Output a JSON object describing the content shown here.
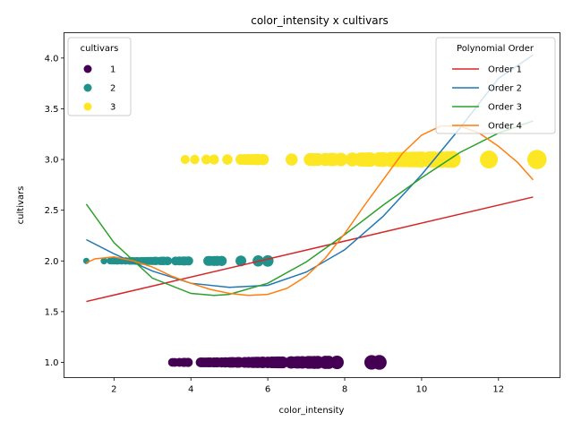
{
  "chart_data": {
    "type": "scatter",
    "title": "color_intensity x cultivars",
    "xlabel": "color_intensity",
    "ylabel": "cultivars",
    "xlim": [
      0.7,
      13.6
    ],
    "ylim": [
      0.85,
      4.25
    ],
    "xticks": [
      2,
      4,
      6,
      8,
      10,
      12
    ],
    "yticks": [
      1.0,
      1.5,
      2.0,
      2.5,
      3.0,
      3.5,
      4.0
    ],
    "grid": false,
    "colors": {
      "class1": "#440154",
      "class2": "#21918c",
      "class3": "#fde725"
    },
    "legends": [
      {
        "title": "cultivars",
        "placement": "upper left",
        "items": [
          {
            "label": "1",
            "color": "#440154"
          },
          {
            "label": "2",
            "color": "#21918c"
          },
          {
            "label": "3",
            "color": "#fde725"
          }
        ]
      },
      {
        "title": "Polynomial Order",
        "placement": "upper right",
        "items": [
          {
            "label": "Order 1",
            "color": "#d62728"
          },
          {
            "label": "Order 2",
            "color": "#1f77b4"
          },
          {
            "label": "Order 3",
            "color": "#2ca02c"
          },
          {
            "label": "Order 4",
            "color": "#ff7f0e"
          }
        ]
      }
    ],
    "series": [
      {
        "name": "1",
        "y": 1,
        "color": "#440154",
        "x": [
          3.52,
          3.58,
          3.7,
          3.8,
          3.84,
          3.93,
          4.25,
          4.28,
          4.32,
          4.38,
          4.45,
          4.5,
          4.6,
          4.68,
          4.8,
          4.9,
          5.0,
          5.05,
          5.1,
          5.2,
          5.25,
          5.4,
          5.5,
          5.6,
          5.64,
          5.7,
          5.75,
          5.85,
          5.88,
          6.0,
          6.1,
          6.13,
          6.2,
          6.25,
          6.3,
          6.38,
          6.6,
          6.62,
          6.75,
          6.8,
          6.9,
          7.05,
          7.1,
          7.2,
          7.22,
          7.3,
          7.5,
          7.58,
          7.8,
          8.7,
          8.9
        ]
      },
      {
        "name": "2",
        "y": 2,
        "color": "#21918c",
        "x": [
          1.28,
          1.74,
          1.9,
          1.95,
          2.0,
          2.06,
          2.08,
          2.12,
          2.2,
          2.3,
          2.4,
          2.45,
          2.5,
          2.57,
          2.6,
          2.62,
          2.7,
          2.76,
          2.8,
          2.85,
          2.9,
          2.95,
          3.0,
          3.05,
          3.08,
          3.1,
          3.2,
          3.25,
          3.27,
          3.3,
          3.38,
          3.4,
          3.6,
          3.7,
          3.8,
          3.85,
          3.94,
          4.45,
          4.5,
          4.6,
          4.68,
          4.8,
          5.3,
          5.75,
          6.0
        ]
      },
      {
        "name": "3",
        "y": 3,
        "color": "#fde725",
        "x": [
          3.85,
          4.1,
          4.4,
          4.6,
          4.95,
          5.3,
          5.4,
          5.5,
          5.6,
          5.7,
          5.75,
          5.88,
          6.62,
          7.1,
          7.2,
          7.3,
          7.5,
          7.65,
          7.7,
          7.9,
          8.2,
          8.42,
          8.5,
          8.6,
          8.66,
          8.9,
          9.0,
          9.2,
          9.3,
          9.4,
          9.5,
          9.58,
          9.7,
          9.8,
          9.9,
          10.0,
          10.2,
          10.3,
          10.5,
          10.52,
          10.68,
          10.8,
          11.75,
          13.0
        ]
      }
    ],
    "fits": [
      {
        "name": "Order 1",
        "color": "#d62728",
        "x": [
          1.28,
          12.9
        ],
        "y": [
          1.6,
          2.63
        ]
      },
      {
        "name": "Order 2",
        "color": "#1f77b4",
        "x": [
          1.28,
          2.0,
          3.0,
          4.0,
          5.0,
          6.0,
          7.0,
          8.0,
          9.0,
          10.0,
          11.0,
          12.0,
          12.9
        ],
        "y": [
          2.21,
          2.07,
          1.9,
          1.78,
          1.74,
          1.76,
          1.89,
          2.11,
          2.44,
          2.85,
          3.31,
          3.8,
          4.03
        ]
      },
      {
        "name": "Order 3",
        "color": "#2ca02c",
        "x": [
          1.28,
          2.0,
          3.0,
          4.0,
          4.6,
          5.0,
          6.0,
          7.0,
          8.0,
          9.0,
          10.0,
          11.0,
          12.0,
          12.9
        ],
        "y": [
          2.56,
          2.18,
          1.83,
          1.68,
          1.66,
          1.67,
          1.78,
          1.99,
          2.26,
          2.55,
          2.82,
          3.07,
          3.26,
          3.38
        ]
      },
      {
        "name": "Order 4",
        "color": "#ff7f0e",
        "x": [
          1.28,
          1.5,
          2.0,
          2.5,
          3.0,
          3.5,
          4.0,
          4.5,
          5.0,
          5.5,
          6.0,
          6.5,
          7.0,
          7.5,
          8.0,
          8.5,
          9.0,
          9.5,
          10.0,
          10.5,
          11.0,
          11.5,
          12.0,
          12.5,
          12.9
        ],
        "y": [
          1.98,
          2.02,
          2.04,
          2.0,
          1.94,
          1.85,
          1.78,
          1.72,
          1.68,
          1.66,
          1.67,
          1.73,
          1.85,
          2.03,
          2.27,
          2.54,
          2.8,
          3.06,
          3.24,
          3.33,
          3.33,
          3.26,
          3.13,
          2.97,
          2.8
        ]
      }
    ]
  }
}
